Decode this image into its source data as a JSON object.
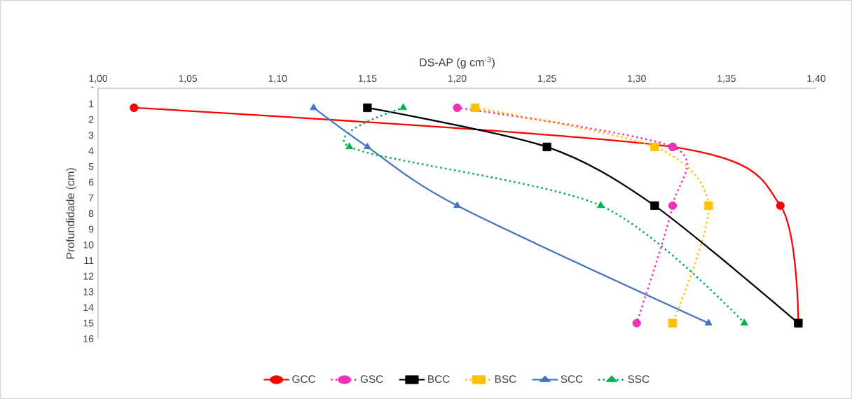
{
  "chart_data": {
    "type": "line",
    "xlabel": "DS-AP (g cm$^{-3}$)",
    "ylabel": "Profundidade (cm)",
    "xlim": [
      1.0,
      1.4
    ],
    "xticks": [
      {
        "value": 1.0,
        "label": "1,00"
      },
      {
        "value": 1.05,
        "label": "1,05"
      },
      {
        "value": 1.1,
        "label": "1,10"
      },
      {
        "value": 1.15,
        "label": "1,15"
      },
      {
        "value": 1.2,
        "label": "1,20"
      },
      {
        "value": 1.25,
        "label": "1,25"
      },
      {
        "value": 1.3,
        "label": "1,30"
      },
      {
        "value": 1.35,
        "label": "1,35"
      },
      {
        "value": 1.4,
        "label": "1,40"
      }
    ],
    "ylim": [
      16,
      0
    ],
    "yticks": [
      {
        "value": 0,
        "label": "-"
      },
      1,
      2,
      3,
      4,
      5,
      6,
      7,
      8,
      9,
      10,
      11,
      12,
      13,
      14,
      15,
      16
    ],
    "legend": "bottom",
    "series": [
      {
        "name": "GCC",
        "color": "#ff0000",
        "marker": "circle",
        "line_style": "solid",
        "x": [
          1.02,
          1.32,
          1.38,
          1.39
        ],
        "values": [
          1.25,
          3.75,
          7.5,
          15
        ]
      },
      {
        "name": "GSC",
        "color": "#f032b4",
        "marker": "circle",
        "line_style": "dotted",
        "x": [
          1.2,
          1.32,
          1.32,
          1.3
        ],
        "values": [
          1.25,
          3.75,
          7.5,
          15
        ]
      },
      {
        "name": "BCC",
        "color": "#000000",
        "marker": "square",
        "line_style": "solid",
        "x": [
          1.15,
          1.25,
          1.31,
          1.39
        ],
        "values": [
          1.25,
          3.75,
          7.5,
          15
        ]
      },
      {
        "name": "BSC",
        "color": "#ffc000",
        "marker": "square",
        "line_style": "dotted",
        "x": [
          1.21,
          1.31,
          1.34,
          1.32
        ],
        "values": [
          1.25,
          3.75,
          7.5,
          15
        ]
      },
      {
        "name": "SCC",
        "color": "#4472c4",
        "marker": "triangle",
        "line_style": "solid",
        "x": [
          1.12,
          1.15,
          1.2,
          1.34
        ],
        "values": [
          1.25,
          3.75,
          7.5,
          15
        ]
      },
      {
        "name": "SSC",
        "color": "#00b050",
        "marker": "triangle",
        "line_style": "dotted",
        "x": [
          1.17,
          1.14,
          1.28,
          1.36
        ],
        "values": [
          1.25,
          3.75,
          7.5,
          15
        ]
      }
    ]
  }
}
